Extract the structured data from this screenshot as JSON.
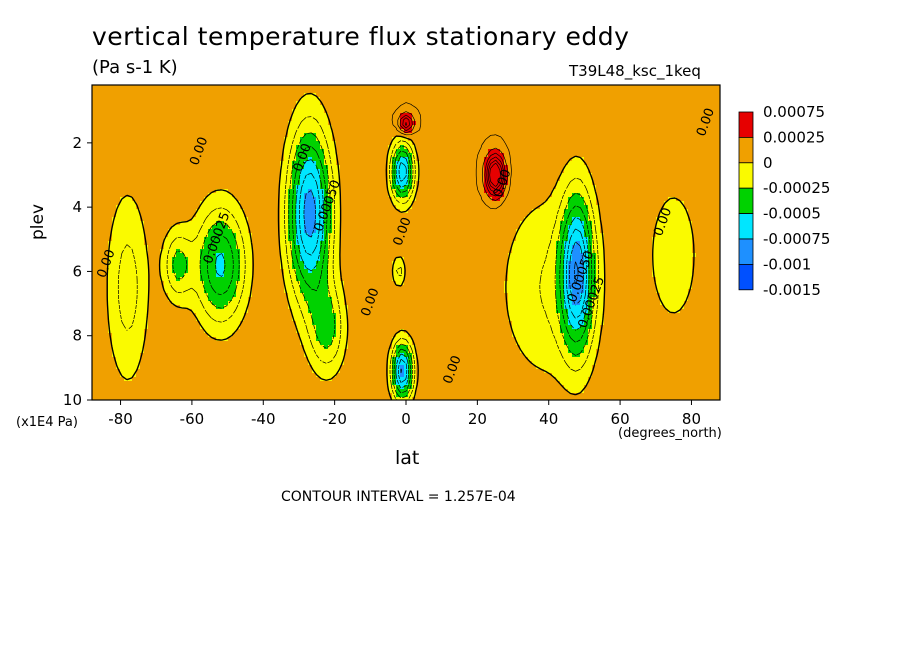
{
  "chart_data": {
    "type": "contour",
    "title": "vertical temperature flux stationary eddy",
    "units_label": "(Pa s-1 K)",
    "run_label": "T39L48_ksc_1keq",
    "xlabel": "lat",
    "ylabel": "plev",
    "x_units_label": "(degrees_north)",
    "y_units_label": "(x1E4 Pa)",
    "contour_interval_label": "CONTOUR INTERVAL = 1.257E-04",
    "x_ticks": [
      "-80",
      "-60",
      "-40",
      "-20",
      "0",
      "20",
      "40",
      "60",
      "80"
    ],
    "y_ticks": [
      "2",
      "4",
      "6",
      "8",
      "10"
    ],
    "xlim": [
      -88,
      88
    ],
    "ylim": [
      10,
      0.2
    ],
    "legend": {
      "position": "right",
      "colors": [
        "#e60000",
        "#f0a000",
        "#fafa00",
        "#00d200",
        "#00e6ff",
        "#1e90ff",
        "#0050ff"
      ],
      "labels": [
        "0.00075",
        "0.00025",
        "0",
        "-0.00025",
        "-0.0005",
        "-0.00075",
        "-0.001",
        "-0.0015"
      ]
    },
    "contour_labels": [
      {
        "text": "0.00",
        "lon": -83,
        "p": 5.8
      },
      {
        "text": "0.00025",
        "lon": -52,
        "p": 5.0
      },
      {
        "text": "0.00",
        "lon": -57,
        "p": 2.3
      },
      {
        "text": "0.00",
        "lon": -28,
        "p": 2.5
      },
      {
        "text": "0.00050",
        "lon": -21,
        "p": 4.0
      },
      {
        "text": "0.00",
        "lon": -9,
        "p": 7.0
      },
      {
        "text": "0.00",
        "lon": 0,
        "p": 4.8
      },
      {
        "text": "0.00",
        "lon": 14,
        "p": 9.1
      },
      {
        "text": "0.00",
        "lon": 28,
        "p": 3.3
      },
      {
        "text": "0.00050",
        "lon": 50,
        "p": 6.2
      },
      {
        "text": "0.00025",
        "lon": 53,
        "p": 7.0
      },
      {
        "text": "0.00",
        "lon": 73,
        "p": 4.5
      },
      {
        "text": "0.00",
        "lon": 85,
        "p": 1.4
      }
    ]
  }
}
